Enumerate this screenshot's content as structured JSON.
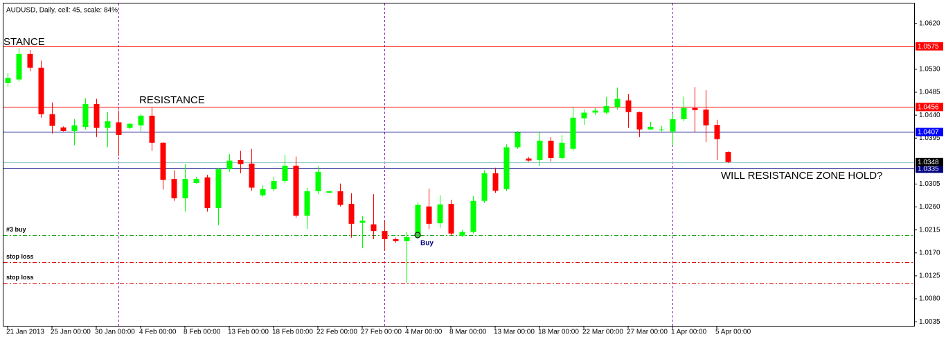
{
  "chart_data": {
    "type": "candlestick",
    "title": "AUDUSD, Daily, cell: 45, scale: 84%",
    "categories": [
      "21 Jan 2013",
      null,
      null,
      null,
      "25 Jan 00:00",
      null,
      null,
      null,
      "30 Jan 00:00",
      null,
      null,
      null,
      "4 Feb 00:00",
      null,
      null,
      null,
      "8 Feb 00:00",
      null,
      null,
      null,
      "13 Feb 00:00",
      null,
      null,
      null,
      "18 Feb 00:00",
      null,
      null,
      null,
      "22 Feb 00:00",
      null,
      null,
      null,
      "27 Feb 00:00",
      null,
      null,
      null,
      "4 Mar 00:00",
      null,
      null,
      null,
      "8 Mar 00:00",
      null,
      null,
      null,
      "13 Mar 00:00",
      null,
      null,
      null,
      "18 Mar 00:00",
      null,
      null,
      null,
      "22 Mar 00:00",
      null,
      null,
      null,
      "27 Mar 00:00",
      null,
      null,
      null,
      "1 Apr 00:00",
      null,
      null,
      null,
      "5 Apr 00:00",
      null
    ],
    "open": [
      1.0503,
      1.051,
      1.056,
      1.0533,
      1.0442,
      1.0416,
      1.0409,
      1.0417,
      1.0462,
      1.0415,
      1.0426,
      1.0415,
      1.042,
      1.0439,
      1.0386,
      1.0315,
      1.0277,
      1.0307,
      1.0318,
      1.0258,
      1.0334,
      1.0352,
      1.0345,
      1.0283,
      1.0295,
      1.0311,
      1.0341,
      1.0243,
      1.0291,
      1.0288,
      1.0291,
      1.0266,
      1.0229,
      1.0226,
      1.0213,
      1.0197,
      1.0193,
      1.0201,
      1.0261,
      1.0228,
      1.0266,
      1.0204,
      1.0211,
      1.0272,
      1.0326,
      1.0295,
      1.0377,
      1.0355,
      1.0352,
      1.039,
      1.0356,
      1.0374,
      1.0434,
      1.0445,
      1.0445,
      1.0456,
      1.0469,
      1.0446,
      1.0412,
      1.0411,
      1.0408,
      1.0432,
      1.0454,
      1.0451,
      1.0421,
      1.0368
    ],
    "high": [
      1.0523,
      1.0571,
      1.0568,
      1.0547,
      1.0465,
      1.0418,
      1.0432,
      1.0473,
      1.0472,
      1.0446,
      1.0449,
      1.0425,
      1.0442,
      1.0455,
      1.0387,
      1.0332,
      1.0344,
      1.0319,
      1.0323,
      1.0337,
      1.0364,
      1.037,
      1.0374,
      1.0302,
      1.0319,
      1.0362,
      1.0359,
      1.0298,
      1.034,
      1.0292,
      1.0306,
      1.0287,
      1.0242,
      1.0285,
      1.0234,
      1.02,
      1.0211,
      1.0269,
      1.0296,
      1.0283,
      1.0274,
      1.0215,
      1.0281,
      1.0332,
      1.0337,
      1.0383,
      1.0409,
      1.0358,
      1.0408,
      1.0397,
      1.0401,
      1.0455,
      1.0451,
      1.0454,
      1.0476,
      1.0494,
      1.0481,
      1.0447,
      1.0427,
      1.0419,
      1.0442,
      1.0476,
      1.0495,
      1.0489,
      1.0431,
      1.0369
    ],
    "low": [
      1.0496,
      1.0506,
      1.0526,
      1.0435,
      1.0404,
      1.0408,
      1.0381,
      1.0412,
      1.0397,
      1.0377,
      1.036,
      1.0413,
      1.0408,
      1.037,
      1.0294,
      1.0272,
      1.0251,
      1.0306,
      1.0251,
      1.0224,
      1.0329,
      1.0326,
      1.0292,
      1.028,
      1.0291,
      1.0307,
      1.0239,
      1.0217,
      1.0285,
      1.0289,
      1.0261,
      1.02,
      1.0179,
      1.0197,
      1.0174,
      1.019,
      1.0111,
      1.0197,
      1.0217,
      1.0219,
      1.0204,
      1.0201,
      1.0208,
      1.0268,
      1.0288,
      1.0291,
      1.0374,
      1.0349,
      1.0341,
      1.0349,
      1.0353,
      1.037,
      1.0421,
      1.044,
      1.0442,
      1.0451,
      1.0415,
      1.0397,
      1.0412,
      1.0408,
      1.0381,
      1.0428,
      1.0407,
      1.0387,
      1.0352,
      1.0346
    ],
    "close": [
      1.0513,
      1.056,
      1.0533,
      1.0442,
      1.0419,
      1.0409,
      1.042,
      1.0462,
      1.0415,
      1.0428,
      1.0401,
      1.0423,
      1.0439,
      1.0386,
      1.0313,
      1.0277,
      1.0315,
      1.0315,
      1.0258,
      1.0334,
      1.0351,
      1.0344,
      1.0298,
      1.0295,
      1.0311,
      1.0341,
      1.0243,
      1.0291,
      1.0329,
      1.0291,
      1.0264,
      1.0227,
      1.0233,
      1.0213,
      1.0197,
      1.0193,
      1.0201,
      1.0264,
      1.0227,
      1.0265,
      1.0208,
      1.0211,
      1.0272,
      1.0326,
      1.0292,
      1.0377,
      1.0406,
      1.0351,
      1.039,
      1.0356,
      1.0386,
      1.0435,
      1.0445,
      1.0449,
      1.0458,
      1.0472,
      1.0446,
      1.0412,
      1.0417,
      1.0412,
      1.0432,
      1.0454,
      1.045,
      1.042,
      1.0393,
      1.0348
    ],
    "up_color": "#00ff00",
    "down_color": "#ff0000",
    "ylim": [
      1.0027,
      1.0659
    ],
    "yticks": [
      {
        "value": 1.062,
        "label": "1.0620"
      },
      {
        "value": 1.053,
        "label": "1.0530"
      },
      1.0485,
      {
        "value": 1.044,
        "label": "1.0440"
      },
      1.0395,
      1.0305,
      {
        "value": 1.026,
        "label": "1.0260"
      },
      1.0215,
      {
        "value": 1.017,
        "label": "1.0170"
      },
      1.0125,
      {
        "value": 1.008,
        "label": "1.0080"
      },
      1.0035
    ],
    "grid": false,
    "levels": [
      {
        "value": 1.0575,
        "color": "#ff0000",
        "label_color": "#ff0000"
      },
      {
        "value": 1.0456,
        "color": "#ff0000",
        "label_color": "#ff0000"
      },
      {
        "value": 1.0407,
        "color": "#000080",
        "label_color": "#0000ff"
      },
      {
        "value": 1.0335,
        "color": "#000080",
        "label_color": "#000080"
      },
      {
        "value": 1.0348,
        "color": "#9ccccc",
        "label_color": "#000000"
      }
    ],
    "orders": [
      {
        "name": "#3 buy",
        "value": 1.0205,
        "color": "#00a000"
      },
      {
        "name": "stop loss",
        "value": 1.0152,
        "color": "#e00000"
      },
      {
        "name": "stop loss",
        "value": 1.0111,
        "color": "#e00000"
      }
    ],
    "buy_marker": {
      "label": "Buy",
      "value": 1.0205
    },
    "annotations": [
      {
        "text": "STANCE"
      },
      {
        "text": "RESISTANCE"
      },
      {
        "text": "WILL RESISTANCE ZONE HOLD?"
      }
    ]
  }
}
